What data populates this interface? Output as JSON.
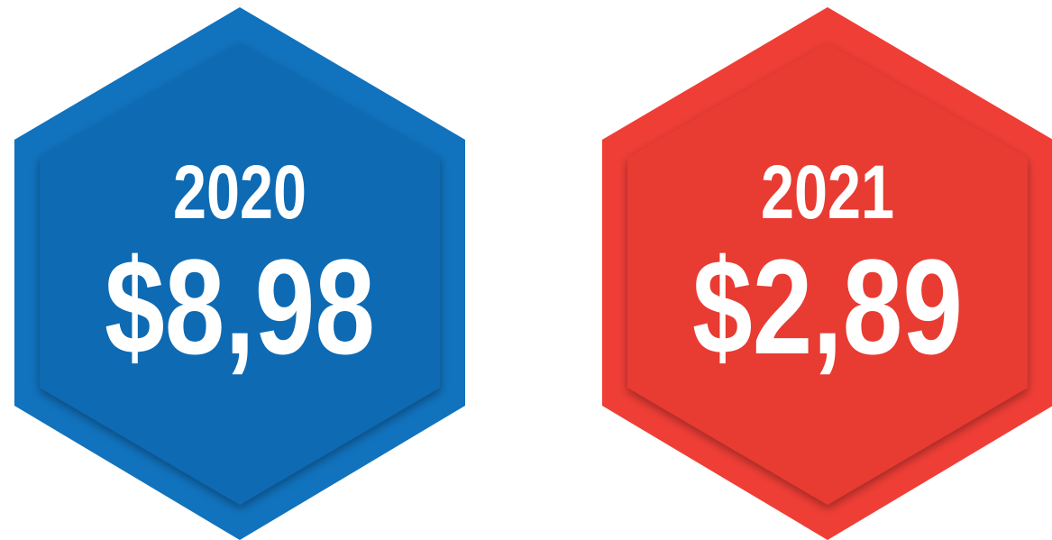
{
  "badges": [
    {
      "year": "2020",
      "value": "$8,98",
      "color": "#1172bd",
      "inner_color": "#0f6bb3"
    },
    {
      "year": "2021",
      "value": "$2,89",
      "color": "#ef3e36",
      "inner_color": "#e83a33"
    }
  ]
}
